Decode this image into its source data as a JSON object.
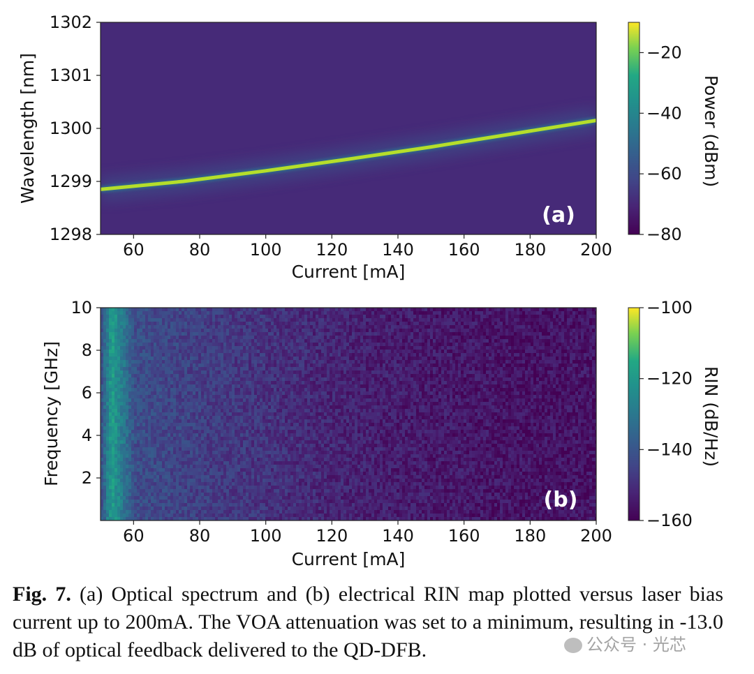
{
  "chart_data": [
    {
      "type": "heatmap",
      "panel_label": "(a)",
      "xlabel": "Current [mA]",
      "ylabel": "Wavelength [nm]",
      "xlim": [
        50,
        200
      ],
      "ylim": [
        1298,
        1302
      ],
      "xticks": [
        "60",
        "80",
        "100",
        "120",
        "140",
        "160",
        "180",
        "200"
      ],
      "yticks": [
        "1298",
        "1299",
        "1300",
        "1301",
        "1302"
      ],
      "colorbar": {
        "label": "Power (dBm)",
        "range": [
          -80,
          -10
        ],
        "ticks": [
          "-20",
          "-40",
          "-60",
          "-80"
        ],
        "colormap": "viridis"
      },
      "peak_wavelength": {
        "current": [
          50,
          75,
          100,
          125,
          150,
          175,
          200
        ],
        "wavelength": [
          1298.85,
          1299.0,
          1299.2,
          1299.42,
          1299.65,
          1299.9,
          1300.15
        ]
      },
      "peak_power": -15,
      "background_power": -78
    },
    {
      "type": "heatmap",
      "panel_label": "(b)",
      "xlabel": "Current [mA]",
      "ylabel": "Frequency [GHz]",
      "xlim": [
        50,
        200
      ],
      "ylim": [
        0,
        10
      ],
      "xticks": [
        "60",
        "80",
        "100",
        "120",
        "140",
        "160",
        "180",
        "200"
      ],
      "yticks": [
        "2",
        "4",
        "6",
        "8",
        "10"
      ],
      "colorbar": {
        "label": "RIN (dB/Hz)",
        "range": [
          -160,
          -100
        ],
        "ticks": [
          "-100",
          "-120",
          "-140",
          "-160"
        ],
        "colormap": "viridis"
      },
      "rin_vs_current": {
        "current": [
          50,
          53,
          60,
          80,
          100,
          120,
          140,
          160,
          180,
          200
        ],
        "rin": [
          -140,
          -118,
          -142,
          -146,
          -149,
          -152,
          -154,
          -155,
          -156,
          -156
        ]
      }
    }
  ],
  "caption": {
    "label": "Fig. 7.",
    "text": " (a) Optical spectrum and (b) electrical RIN map plotted versus laser bias current up to 200mA. The VOA attenuation was set to a minimum, resulting in -13.0 dB of optical feedback delivered to the QD-DFB."
  },
  "watermark": "公众号 · 光芯"
}
